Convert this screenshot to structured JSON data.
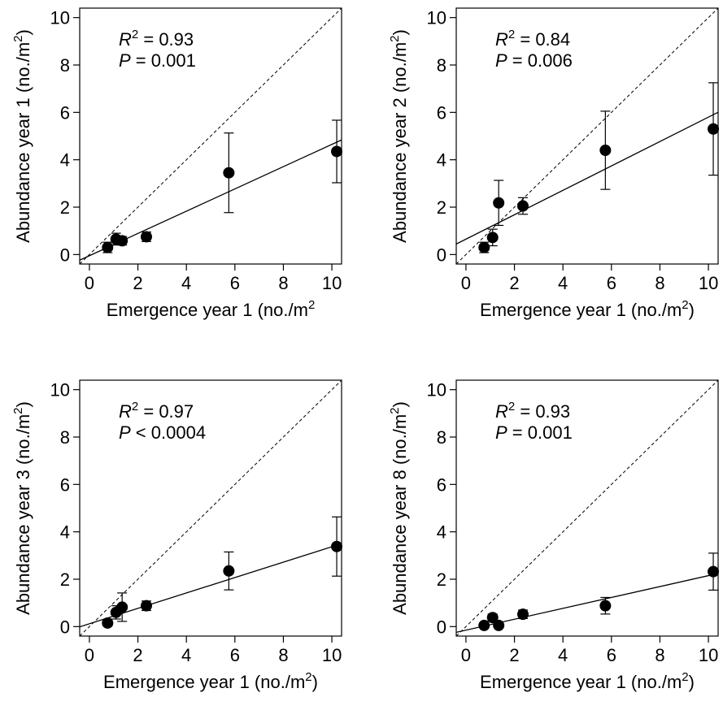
{
  "chart_data": [
    {
      "type": "scatter",
      "xlabel": "Emergence year 1 (no./m",
      "xlabel_sup": "2",
      "xlabel_tail": "",
      "ylabel": "Abundance year 1 (no./m",
      "ylabel_sup": "2",
      "ylabel_tail": ")",
      "annotation": {
        "r2_label": "R",
        "r2_sup": "2",
        "r2_rel": " = ",
        "r2_value": "0.93",
        "p_label": "P",
        "p_rel": " = ",
        "p_value": "0.001"
      },
      "xlim": [
        -0.4,
        10.4
      ],
      "ylim": [
        -0.4,
        10.4
      ],
      "xticks": [
        "0",
        "2",
        "4",
        "6",
        "8",
        "10"
      ],
      "yticks": [
        "0",
        "2",
        "4",
        "6",
        "8",
        "10"
      ],
      "points": [
        {
          "x": 0.75,
          "y": 0.3,
          "err": 0.22
        },
        {
          "x": 1.1,
          "y": 0.65,
          "err": 0.25
        },
        {
          "x": 1.35,
          "y": 0.58,
          "err": 0.18
        },
        {
          "x": 2.35,
          "y": 0.75,
          "err": 0.2
        },
        {
          "x": 5.75,
          "y": 3.45,
          "err": 1.68
        },
        {
          "x": 10.2,
          "y": 4.35,
          "err": 1.32
        }
      ],
      "fit": {
        "intercept": -0.05,
        "slope": 0.47
      },
      "identity_line": true
    },
    {
      "type": "scatter",
      "xlabel": "Emergence year 1 (no./m",
      "xlabel_sup": "2",
      "xlabel_tail": ")",
      "ylabel": "Abundance year 2 (no./m",
      "ylabel_sup": "2",
      "ylabel_tail": ")",
      "annotation": {
        "r2_label": "R",
        "r2_sup": "2",
        "r2_rel": " = ",
        "r2_value": "0.84",
        "p_label": "P",
        "p_rel": " = ",
        "p_value": "0.006"
      },
      "xlim": [
        -0.4,
        10.4
      ],
      "ylim": [
        -0.4,
        10.4
      ],
      "xticks": [
        "0",
        "2",
        "4",
        "6",
        "8",
        "10"
      ],
      "yticks": [
        "0",
        "2",
        "4",
        "6",
        "8",
        "10"
      ],
      "points": [
        {
          "x": 0.75,
          "y": 0.3,
          "err": 0.22
        },
        {
          "x": 1.1,
          "y": 0.72,
          "err": 0.35
        },
        {
          "x": 1.35,
          "y": 2.18,
          "err": 0.95
        },
        {
          "x": 2.35,
          "y": 2.05,
          "err": 0.35
        },
        {
          "x": 5.75,
          "y": 4.4,
          "err": 1.65
        },
        {
          "x": 10.2,
          "y": 5.3,
          "err": 1.95
        }
      ],
      "fit": {
        "intercept": 0.65,
        "slope": 0.515
      },
      "identity_line": true
    },
    {
      "type": "scatter",
      "xlabel": "Emergence year 1 (no./m",
      "xlabel_sup": "2",
      "xlabel_tail": ")",
      "ylabel": "Abundance year 3 (no./m",
      "ylabel_sup": "2",
      "ylabel_tail": ")",
      "annotation": {
        "r2_label": "R",
        "r2_sup": "2",
        "r2_rel": " = ",
        "r2_value": "0.97",
        "p_label": "P",
        "p_rel": " < ",
        "p_value": "0.0004"
      },
      "xlim": [
        -0.4,
        10.4
      ],
      "ylim": [
        -0.4,
        10.4
      ],
      "xticks": [
        "0",
        "2",
        "4",
        "6",
        "8",
        "10"
      ],
      "yticks": [
        "0",
        "2",
        "4",
        "6",
        "8",
        "10"
      ],
      "points": [
        {
          "x": 0.75,
          "y": 0.15,
          "err": 0.12
        },
        {
          "x": 1.1,
          "y": 0.6,
          "err": 0.28
        },
        {
          "x": 1.35,
          "y": 0.82,
          "err": 0.6
        },
        {
          "x": 2.35,
          "y": 0.88,
          "err": 0.2
        },
        {
          "x": 5.75,
          "y": 2.35,
          "err": 0.8
        },
        {
          "x": 10.2,
          "y": 3.38,
          "err": 1.25
        }
      ],
      "fit": {
        "intercept": 0.12,
        "slope": 0.325
      },
      "identity_line": true
    },
    {
      "type": "scatter",
      "xlabel": "Emergence year 1 (no./m",
      "xlabel_sup": "2",
      "xlabel_tail": ")",
      "ylabel": "Abundance year 8 (no./m",
      "ylabel_sup": "2",
      "ylabel_tail": ")",
      "annotation": {
        "r2_label": "R",
        "r2_sup": "2",
        "r2_rel": " = ",
        "r2_value": "0.93",
        "p_label": "P",
        "p_rel": " = ",
        "p_value": "0.001"
      },
      "xlim": [
        -0.4,
        10.4
      ],
      "ylim": [
        -0.4,
        10.4
      ],
      "xticks": [
        "0",
        "2",
        "4",
        "6",
        "8",
        "10"
      ],
      "yticks": [
        "0",
        "2",
        "4",
        "6",
        "8",
        "10"
      ],
      "points": [
        {
          "x": 0.75,
          "y": 0.05,
          "err": 0.0
        },
        {
          "x": 1.1,
          "y": 0.38,
          "err": 0.15
        },
        {
          "x": 1.35,
          "y": 0.05,
          "err": 0.0
        },
        {
          "x": 2.35,
          "y": 0.52,
          "err": 0.18
        },
        {
          "x": 5.75,
          "y": 0.88,
          "err": 0.35
        },
        {
          "x": 10.2,
          "y": 2.32,
          "err": 0.78
        }
      ],
      "fit": {
        "intercept": -0.15,
        "slope": 0.23
      },
      "identity_line": true
    }
  ]
}
